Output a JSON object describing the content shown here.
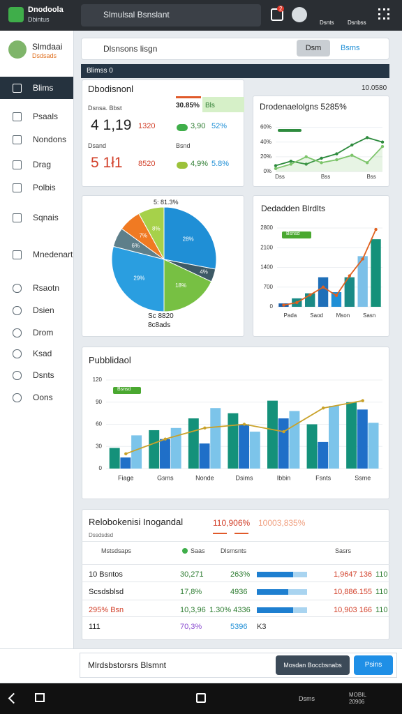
{
  "top_bar": {
    "app_name": "Dnodoola",
    "app_sub": "Dbintus",
    "search": "Slmulsal Bsnslant",
    "badge": "2",
    "links": [
      "Dsnts",
      "Dsnbss"
    ]
  },
  "profile": {
    "name": "Slmdaai",
    "role": "Dsdsads"
  },
  "sidebar": [
    "Blims",
    "Psaals",
    "Nondons",
    "Drag",
    "Polbis",
    "Sqnais",
    "Mnedenart",
    "Rsaotn",
    "Dsien",
    "Drom",
    "Ksad",
    "Dsnts",
    "Oons"
  ],
  "search_bar": {
    "placeholder": "Dlsnsons lisgn",
    "button": "Dsm",
    "link": "Bsms"
  },
  "section": {
    "title": "Blimss 0",
    "date": "10.0580"
  },
  "summary": {
    "title": "Dbodisnonl",
    "tag": "30.85%",
    "tag2": "Bls",
    "rows": [
      {
        "label": "Dsnsa. Bbst",
        "value": "4 1,19",
        "delta": "1320",
        "pill": "3,90",
        "pct": "52%"
      },
      {
        "label": "Dsand",
        "sub": "Bsnd",
        "value": "5 1ł1",
        "delta": "8520",
        "pill": "4,9%",
        "pct": "5.8%"
      }
    ]
  },
  "line_chart": {
    "title": "Drodenaelolgns 5285%",
    "ylim": [
      0,
      70
    ],
    "yticks": [
      {
        "value": 0,
        "label": "0%"
      },
      {
        "value": 20,
        "label": "20%"
      },
      {
        "value": 40,
        "label": "40%"
      },
      {
        "value": 60,
        "label": "60%"
      }
    ],
    "categories": [
      "Dss",
      null,
      null,
      "Bss",
      null,
      null,
      "Bss",
      null
    ],
    "series": [
      {
        "color": "#2e8b3e",
        "values": [
          8,
          14,
          10,
          18,
          24,
          36,
          46,
          40
        ]
      },
      {
        "color": "#7cc46a",
        "values": [
          4,
          10,
          20,
          12,
          16,
          22,
          12,
          34
        ]
      }
    ]
  },
  "pie": {
    "title": "5: 81.3%",
    "values": [
      28,
      4,
      18,
      29,
      6,
      7,
      8
    ],
    "value_labels": [
      "28%",
      "4%",
      "18%",
      "29%",
      "6%",
      "7%",
      "8%"
    ],
    "colors": [
      "#1f8fd6",
      "#3d5a66",
      "#77c043",
      "#2a9ee0",
      "#5e7f8a",
      "#f07a22",
      "#a6d14a"
    ],
    "footer": [
      "Sc 8820",
      "8c8ads"
    ]
  },
  "bar_line": {
    "title": "Dedadden Blrdlts",
    "legend": "Bsnsd",
    "ylim": [
      0,
      2800
    ],
    "yticks": [
      0,
      700,
      1400,
      2100,
      2800
    ],
    "categories": [
      "Pada",
      null,
      "Saod",
      null,
      "Mson",
      null,
      "Sasn",
      null
    ],
    "bars": {
      "values": [
        120,
        300,
        480,
        1050,
        520,
        1050,
        1800,
        2400
      ],
      "colors": [
        "#1c5fa8",
        "#1a8a86",
        "#1a8a86",
        "#1f6fb8",
        "#1f8fd6",
        "#1a8a86",
        "#7cc0e8",
        "#14917a"
      ]
    },
    "line": {
      "color": "#e0601e",
      "values": [
        60,
        150,
        420,
        700,
        400,
        1100,
        1700,
        2750
      ]
    }
  },
  "combo": {
    "title": "Pubblidaol",
    "legend": "Bsnsd",
    "ylim": [
      0,
      120
    ],
    "yticks": [
      0,
      30,
      60,
      90,
      120
    ],
    "categories": [
      "Fiage",
      "Gsms",
      "Nonde",
      "Dsims",
      "Ibbin",
      "Fsnts",
      "Ssme"
    ],
    "series": [
      {
        "color": "#14917a",
        "values": [
          28,
          52,
          68,
          75,
          92,
          60,
          90
        ]
      },
      {
        "color": "#1f6fc8",
        "values": [
          15,
          40,
          34,
          60,
          68,
          36,
          80
        ]
      },
      {
        "color": "#7cc4ea",
        "values": [
          45,
          55,
          82,
          50,
          78,
          85,
          62
        ]
      }
    ],
    "line": {
      "color": "#c9a22a",
      "values": [
        20,
        40,
        55,
        60,
        50,
        82,
        92
      ]
    }
  },
  "table": {
    "title": "Relobokenisi Inogandal",
    "stat1": "110,906%",
    "stat2": "10003,835%",
    "sub": "Dssdsdsd",
    "columns": [
      "Mstsdsaps",
      "Saas",
      "Dlsmsnts",
      "Sasrs"
    ],
    "rows": [
      {
        "name": "10 Bsntos",
        "v1": "30,271",
        "v2": "263%",
        "bar": 72,
        "v3": "1,9647 136",
        "v4": "110"
      },
      {
        "name": "Scsdsblsd",
        "v1": "17,8%",
        "v2": "4936",
        "bar": 62,
        "v3": "10,886.155",
        "v4": "110"
      },
      {
        "name": "295% Bsn",
        "v1": "10,3,96",
        "v2": "1.30% 4336",
        "bar": 72,
        "v3": "10,903 166",
        "v4": "110"
      },
      {
        "name": "111",
        "v1": "70,3%",
        "v2": "5396",
        "v3": "K3"
      }
    ]
  },
  "footer": {
    "text": "Mlrdsbstorsrs Blsmnt",
    "buttons": [
      "Mosdan Boccbsnabs",
      "Psins"
    ]
  },
  "nav": {
    "label": "Dsms",
    "right": [
      "MOBIL",
      "20906"
    ]
  }
}
